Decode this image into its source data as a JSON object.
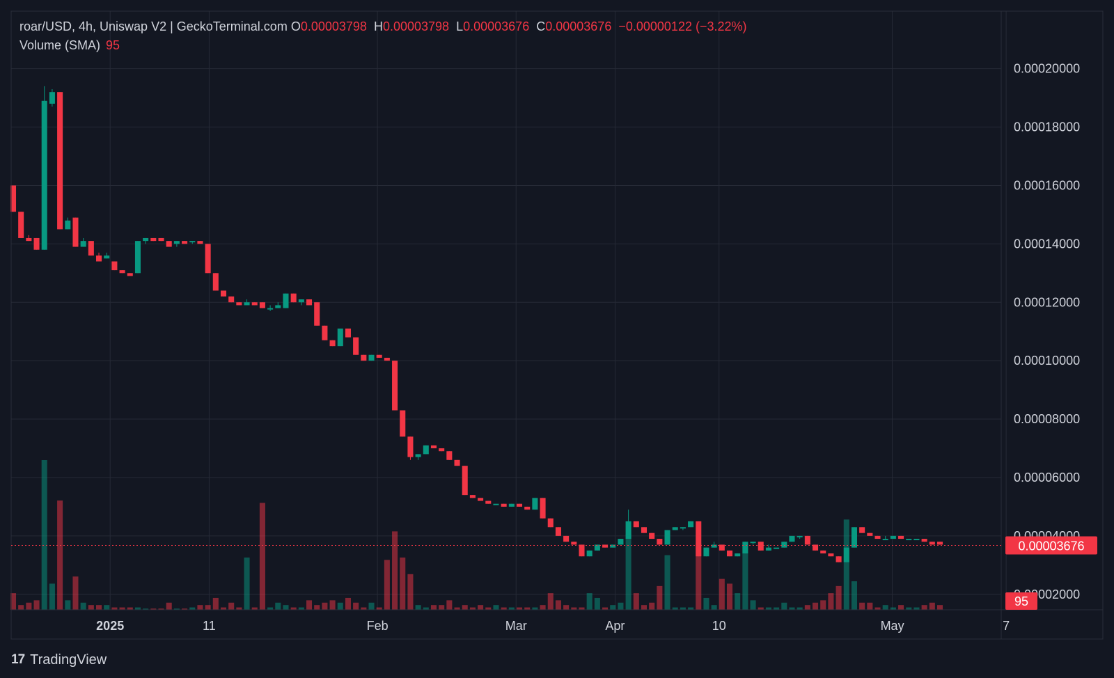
{
  "legend": {
    "symbol": "roar/USD, 4h, Uniswap V2 | GeckoTerminal.com",
    "o_label": "O",
    "o_value": "0.00003798",
    "h_label": "H",
    "h_value": "0.00003798",
    "l_label": "L",
    "l_value": "0.00003676",
    "c_label": "C",
    "c_value": "0.00003676",
    "change": "−0.00000122 (−3.22%)",
    "volume_label": "Volume (SMA)",
    "volume_value": "95"
  },
  "brand": {
    "logo_text": "17",
    "name": "TradingView"
  },
  "colors": {
    "up": "#089981",
    "down": "#f23645",
    "background": "#131722",
    "grid": "#262a36",
    "text": "#d1d4dc"
  },
  "chart_data": {
    "type": "candlestick",
    "y_ticks": [
      "0.00020000",
      "0.00018000",
      "0.00016000",
      "0.00014000",
      "0.00012000",
      "0.00010000",
      "0.00008000",
      "0.00006000",
      "0.00004000",
      "0.00002000"
    ],
    "ylim": [
      1.47e-05,
      0.0002197
    ],
    "x_ticks": [
      {
        "label": "2025",
        "pos": 10.0
      },
      {
        "label": "11",
        "pos": 20.0
      },
      {
        "label": "Feb",
        "pos": 37.0
      },
      {
        "label": "Mar",
        "pos": 51.0
      },
      {
        "label": "Apr",
        "pos": 61.0
      },
      {
        "label": "10",
        "pos": 71.5
      },
      {
        "label": "May",
        "pos": 89.0
      },
      {
        "label": "7",
        "pos": 100.5
      }
    ],
    "last_price": "0.00003676",
    "last_price_value": 3.676e-05,
    "last_volume": "95",
    "candles": [
      {
        "o": 0.00016,
        "h": 0.00016,
        "l": 0.000151,
        "c": 0.000151,
        "v": 0.7
      },
      {
        "o": 0.000151,
        "h": 0.000151,
        "l": 0.000142,
        "c": 0.000142,
        "v": 0.2
      },
      {
        "o": 0.000142,
        "h": 0.000143,
        "l": 0.000141,
        "c": 0.000141,
        "v": 0.3
      },
      {
        "o": 0.000142,
        "h": 0.000142,
        "l": 0.000138,
        "c": 0.000138,
        "v": 0.4
      },
      {
        "o": 0.000138,
        "h": 0.000194,
        "l": 0.000138,
        "c": 0.000189,
        "v": 6.3
      },
      {
        "o": 0.000188,
        "h": 0.000193,
        "l": 0.000187,
        "c": 0.000192,
        "v": 1.1
      },
      {
        "o": 0.000192,
        "h": 0.000192,
        "l": 0.000145,
        "c": 0.000145,
        "v": 4.6
      },
      {
        "o": 0.000145,
        "h": 0.000149,
        "l": 0.000145,
        "c": 0.000148,
        "v": 0.4
      },
      {
        "o": 0.000149,
        "h": 0.000149,
        "l": 0.000139,
        "c": 0.000139,
        "v": 1.4
      },
      {
        "o": 0.000139,
        "h": 0.000142,
        "l": 0.000139,
        "c": 0.000141,
        "v": 0.3
      },
      {
        "o": 0.000141,
        "h": 0.000141,
        "l": 0.000136,
        "c": 0.000136,
        "v": 0.2
      },
      {
        "o": 0.000136,
        "h": 0.000137,
        "l": 0.000134,
        "c": 0.000134,
        "v": 0.2
      },
      {
        "o": 0.000135,
        "h": 0.000137,
        "l": 0.000135,
        "c": 0.000136,
        "v": 0.2
      },
      {
        "o": 0.000134,
        "h": 0.000134,
        "l": 0.000131,
        "c": 0.000131,
        "v": 0.1
      },
      {
        "o": 0.000131,
        "h": 0.000131,
        "l": 0.00013,
        "c": 0.00013,
        "v": 0.1
      },
      {
        "o": 0.00013,
        "h": 0.00013,
        "l": 0.000129,
        "c": 0.000129,
        "v": 0.1
      },
      {
        "o": 0.00013,
        "h": 0.000141,
        "l": 0.00013,
        "c": 0.000141,
        "v": 0.1
      },
      {
        "o": 0.000141,
        "h": 0.000142,
        "l": 0.00014,
        "c": 0.000142,
        "v": 0.05
      },
      {
        "o": 0.000142,
        "h": 0.000142,
        "l": 0.000141,
        "c": 0.000141,
        "v": 0.05
      },
      {
        "o": 0.000142,
        "h": 0.000142,
        "l": 0.000141,
        "c": 0.000141,
        "v": 0.05
      },
      {
        "o": 0.000141,
        "h": 0.000141,
        "l": 0.000139,
        "c": 0.000139,
        "v": 0.3
      },
      {
        "o": 0.00014,
        "h": 0.000141,
        "l": 0.000139,
        "c": 0.000141,
        "v": 0.05
      },
      {
        "o": 0.000141,
        "h": 0.000141,
        "l": 0.00014,
        "c": 0.00014,
        "v": 0.05
      },
      {
        "o": 0.000141,
        "h": 0.000141,
        "l": 0.00014,
        "c": 0.000141,
        "v": 0.1
      },
      {
        "o": 0.000141,
        "h": 0.000141,
        "l": 0.00014,
        "c": 0.00014,
        "v": 0.2
      },
      {
        "o": 0.00014,
        "h": 0.00014,
        "l": 0.00013,
        "c": 0.00013,
        "v": 0.2
      },
      {
        "o": 0.00013,
        "h": 0.00013,
        "l": 0.000124,
        "c": 0.000124,
        "v": 0.5
      },
      {
        "o": 0.000124,
        "h": 0.000124,
        "l": 0.000122,
        "c": 0.000122,
        "v": 0.1
      },
      {
        "o": 0.000122,
        "h": 0.000122,
        "l": 0.00012,
        "c": 0.00012,
        "v": 0.3
      },
      {
        "o": 0.00012,
        "h": 0.00012,
        "l": 0.000119,
        "c": 0.000119,
        "v": 0.1
      },
      {
        "o": 0.000119,
        "h": 0.000121,
        "l": 0.000119,
        "c": 0.00012,
        "v": 2.2
      },
      {
        "o": 0.00012,
        "h": 0.00012,
        "l": 0.000119,
        "c": 0.000119,
        "v": 0.1
      },
      {
        "o": 0.00012,
        "h": 0.00012,
        "l": 0.000118,
        "c": 0.000118,
        "v": 4.5
      },
      {
        "o": 0.000118,
        "h": 0.000119,
        "l": 0.000117,
        "c": 0.000118,
        "v": 0.1
      },
      {
        "o": 0.000118,
        "h": 0.00012,
        "l": 0.000118,
        "c": 0.000119,
        "v": 0.3
      },
      {
        "o": 0.000118,
        "h": 0.000123,
        "l": 0.000118,
        "c": 0.000123,
        "v": 0.2
      },
      {
        "o": 0.000123,
        "h": 0.000123,
        "l": 0.00012,
        "c": 0.00012,
        "v": 0.1
      },
      {
        "o": 0.00012,
        "h": 0.000121,
        "l": 0.000119,
        "c": 0.000121,
        "v": 0.1
      },
      {
        "o": 0.000121,
        "h": 0.000121,
        "l": 0.000119,
        "c": 0.000119,
        "v": 0.4
      },
      {
        "o": 0.00012,
        "h": 0.00012,
        "l": 0.000112,
        "c": 0.000112,
        "v": 0.2
      },
      {
        "o": 0.000112,
        "h": 0.000112,
        "l": 0.000107,
        "c": 0.000107,
        "v": 0.3
      },
      {
        "o": 0.000107,
        "h": 0.000107,
        "l": 0.000105,
        "c": 0.000105,
        "v": 0.4
      },
      {
        "o": 0.000105,
        "h": 0.000111,
        "l": 0.000105,
        "c": 0.000111,
        "v": 0.3
      },
      {
        "o": 0.000111,
        "h": 0.000111,
        "l": 0.000108,
        "c": 0.000108,
        "v": 0.5
      },
      {
        "o": 0.000108,
        "h": 0.000108,
        "l": 0.000102,
        "c": 0.000102,
        "v": 0.3
      },
      {
        "o": 0.000102,
        "h": 0.000102,
        "l": 0.0001,
        "c": 0.0001,
        "v": 0.1
      },
      {
        "o": 0.0001,
        "h": 0.000102,
        "l": 0.0001,
        "c": 0.000102,
        "v": 0.3
      },
      {
        "o": 0.000102,
        "h": 0.000102,
        "l": 0.000101,
        "c": 0.000101,
        "v": 0.1
      },
      {
        "o": 0.000101,
        "h": 0.000101,
        "l": 0.0001,
        "c": 0.0001,
        "v": 2.1
      },
      {
        "o": 0.0001,
        "h": 0.0001,
        "l": 8.3e-05,
        "c": 8.3e-05,
        "v": 3.3
      },
      {
        "o": 8.3e-05,
        "h": 8.3e-05,
        "l": 7.4e-05,
        "c": 7.4e-05,
        "v": 2.2
      },
      {
        "o": 7.4e-05,
        "h": 7.4e-05,
        "l": 6.6e-05,
        "c": 6.7e-05,
        "v": 1.5
      },
      {
        "o": 6.7e-05,
        "h": 6.8e-05,
        "l": 6.6e-05,
        "c": 6.8e-05,
        "v": 0.2
      },
      {
        "o": 6.8e-05,
        "h": 7.1e-05,
        "l": 6.8e-05,
        "c": 7.1e-05,
        "v": 0.1
      },
      {
        "o": 7.1e-05,
        "h": 7.1e-05,
        "l": 7e-05,
        "c": 7e-05,
        "v": 0.2
      },
      {
        "o": 7e-05,
        "h": 7e-05,
        "l": 6.9e-05,
        "c": 6.9e-05,
        "v": 0.2
      },
      {
        "o": 6.9e-05,
        "h": 6.9e-05,
        "l": 6.6e-05,
        "c": 6.6e-05,
        "v": 0.4
      },
      {
        "o": 6.6e-05,
        "h": 6.6e-05,
        "l": 6.4e-05,
        "c": 6.4e-05,
        "v": 0.1
      },
      {
        "o": 6.4e-05,
        "h": 6.4e-05,
        "l": 5.4e-05,
        "c": 5.4e-05,
        "v": 0.2
      },
      {
        "o": 5.4e-05,
        "h": 5.4e-05,
        "l": 5.3e-05,
        "c": 5.3e-05,
        "v": 0.1
      },
      {
        "o": 5.3e-05,
        "h": 5.3e-05,
        "l": 5.2e-05,
        "c": 5.2e-05,
        "v": 0.2
      },
      {
        "o": 5.2e-05,
        "h": 5.2e-05,
        "l": 5.1e-05,
        "c": 5.1e-05,
        "v": 0.1
      },
      {
        "o": 5.1e-05,
        "h": 5.1e-05,
        "l": 5.1e-05,
        "c": 5.1e-05,
        "v": 0.2
      },
      {
        "o": 5.1e-05,
        "h": 5.1e-05,
        "l": 5e-05,
        "c": 5e-05,
        "v": 0.1
      },
      {
        "o": 5e-05,
        "h": 5.1e-05,
        "l": 5e-05,
        "c": 5.1e-05,
        "v": 0.1
      },
      {
        "o": 5.1e-05,
        "h": 5.1e-05,
        "l": 5e-05,
        "c": 5e-05,
        "v": 0.1
      },
      {
        "o": 5e-05,
        "h": 5e-05,
        "l": 4.9e-05,
        "c": 4.9e-05,
        "v": 0.1
      },
      {
        "o": 4.9e-05,
        "h": 5.3e-05,
        "l": 4.9e-05,
        "c": 5.3e-05,
        "v": 0.1
      },
      {
        "o": 5.3e-05,
        "h": 5.3e-05,
        "l": 4.6e-05,
        "c": 4.6e-05,
        "v": 0.2
      },
      {
        "o": 4.6e-05,
        "h": 4.6e-05,
        "l": 4.3e-05,
        "c": 4.3e-05,
        "v": 0.7
      },
      {
        "o": 4.3e-05,
        "h": 4.3e-05,
        "l": 4e-05,
        "c": 4e-05,
        "v": 0.4
      },
      {
        "o": 4e-05,
        "h": 4e-05,
        "l": 3.8e-05,
        "c": 3.8e-05,
        "v": 0.2
      },
      {
        "o": 3.8e-05,
        "h": 3.8e-05,
        "l": 3.7e-05,
        "c": 3.7e-05,
        "v": 0.1
      },
      {
        "o": 3.7e-05,
        "h": 3.7e-05,
        "l": 3.3e-05,
        "c": 3.3e-05,
        "v": 0.1
      },
      {
        "o": 3.3e-05,
        "h": 3.5e-05,
        "l": 3.3e-05,
        "c": 3.5e-05,
        "v": 0.7
      },
      {
        "o": 3.5e-05,
        "h": 3.7e-05,
        "l": 3.5e-05,
        "c": 3.7e-05,
        "v": 0.5
      },
      {
        "o": 3.7e-05,
        "h": 3.7e-05,
        "l": 3.6e-05,
        "c": 3.6e-05,
        "v": 0.1
      },
      {
        "o": 3.6e-05,
        "h": 3.7e-05,
        "l": 3.6e-05,
        "c": 3.7e-05,
        "v": 0.2
      },
      {
        "o": 3.7e-05,
        "h": 3.9e-05,
        "l": 3.7e-05,
        "c": 3.9e-05,
        "v": 0.3
      },
      {
        "o": 3.9e-05,
        "h": 4.9e-05,
        "l": 3.9e-05,
        "c": 4.5e-05,
        "v": 3.2
      },
      {
        "o": 4.5e-05,
        "h": 4.5e-05,
        "l": 4.3e-05,
        "c": 4.3e-05,
        "v": 0.7
      },
      {
        "o": 4.3e-05,
        "h": 4.3e-05,
        "l": 4.1e-05,
        "c": 4.1e-05,
        "v": 0.2
      },
      {
        "o": 4.1e-05,
        "h": 4.1e-05,
        "l": 3.9e-05,
        "c": 3.9e-05,
        "v": 0.3
      },
      {
        "o": 3.9e-05,
        "h": 3.9e-05,
        "l": 3.7e-05,
        "c": 3.7e-05,
        "v": 1.0
      },
      {
        "o": 3.7e-05,
        "h": 4.2e-05,
        "l": 3.7e-05,
        "c": 4.2e-05,
        "v": 2.3
      },
      {
        "o": 4.2e-05,
        "h": 4.3e-05,
        "l": 4.2e-05,
        "c": 4.3e-05,
        "v": 0.1
      },
      {
        "o": 4.3e-05,
        "h": 4.3e-05,
        "l": 4.2e-05,
        "c": 4.3e-05,
        "v": 0.1
      },
      {
        "o": 4.3e-05,
        "h": 4.5e-05,
        "l": 4.3e-05,
        "c": 4.5e-05,
        "v": 0.1
      },
      {
        "o": 4.5e-05,
        "h": 4.5e-05,
        "l": 3.3e-05,
        "c": 3.3e-05,
        "v": 2.8
      },
      {
        "o": 3.3e-05,
        "h": 3.6e-05,
        "l": 3.3e-05,
        "c": 3.6e-05,
        "v": 0.5
      },
      {
        "o": 3.6e-05,
        "h": 3.8e-05,
        "l": 3.6e-05,
        "c": 3.7e-05,
        "v": 0.2
      },
      {
        "o": 3.7e-05,
        "h": 3.7e-05,
        "l": 3.5e-05,
        "c": 3.5e-05,
        "v": 1.3
      },
      {
        "o": 3.5e-05,
        "h": 3.5e-05,
        "l": 3.3e-05,
        "c": 3.3e-05,
        "v": 1.1
      },
      {
        "o": 3.3e-05,
        "h": 3.4e-05,
        "l": 3.3e-05,
        "c": 3.4e-05,
        "v": 0.7
      },
      {
        "o": 3.4e-05,
        "h": 3.8e-05,
        "l": 3.4e-05,
        "c": 3.8e-05,
        "v": 2.4
      },
      {
        "o": 3.8e-05,
        "h": 3.8e-05,
        "l": 3.7e-05,
        "c": 3.8e-05,
        "v": 0.4
      },
      {
        "o": 3.8e-05,
        "h": 3.8e-05,
        "l": 3.5e-05,
        "c": 3.5e-05,
        "v": 0.1
      },
      {
        "o": 3.5e-05,
        "h": 3.7e-05,
        "l": 3.5e-05,
        "c": 3.6e-05,
        "v": 0.1
      },
      {
        "o": 3.6e-05,
        "h": 3.6e-05,
        "l": 3.6e-05,
        "c": 3.6e-05,
        "v": 0.1
      },
      {
        "o": 3.6e-05,
        "h": 3.8e-05,
        "l": 3.6e-05,
        "c": 3.8e-05,
        "v": 0.3
      },
      {
        "o": 3.8e-05,
        "h": 4e-05,
        "l": 3.8e-05,
        "c": 4e-05,
        "v": 0.1
      },
      {
        "o": 4e-05,
        "h": 4e-05,
        "l": 3.9e-05,
        "c": 4e-05,
        "v": 0.1
      },
      {
        "o": 4e-05,
        "h": 4e-05,
        "l": 3.7e-05,
        "c": 3.7e-05,
        "v": 0.2
      },
      {
        "o": 3.7e-05,
        "h": 3.7e-05,
        "l": 3.5e-05,
        "c": 3.5e-05,
        "v": 0.3
      },
      {
        "o": 3.5e-05,
        "h": 3.5e-05,
        "l": 3.4e-05,
        "c": 3.4e-05,
        "v": 0.4
      },
      {
        "o": 3.4e-05,
        "h": 3.4e-05,
        "l": 3.3e-05,
        "c": 3.3e-05,
        "v": 0.7
      },
      {
        "o": 3.3e-05,
        "h": 3.3e-05,
        "l": 3.1e-05,
        "c": 3.1e-05,
        "v": 1.0
      },
      {
        "o": 3.1e-05,
        "h": 3.6e-05,
        "l": 3.1e-05,
        "c": 3.6e-05,
        "v": 3.8
      },
      {
        "o": 3.6e-05,
        "h": 4.3e-05,
        "l": 3.6e-05,
        "c": 4.3e-05,
        "v": 1.2
      },
      {
        "o": 4.3e-05,
        "h": 4.3e-05,
        "l": 4.1e-05,
        "c": 4.1e-05,
        "v": 0.3
      },
      {
        "o": 4.1e-05,
        "h": 4.1e-05,
        "l": 4e-05,
        "c": 4e-05,
        "v": 0.3
      },
      {
        "o": 4e-05,
        "h": 4e-05,
        "l": 3.9e-05,
        "c": 3.9e-05,
        "v": 0.1
      },
      {
        "o": 3.9e-05,
        "h": 4e-05,
        "l": 3.9e-05,
        "c": 3.9e-05,
        "v": 0.2
      },
      {
        "o": 3.9e-05,
        "h": 4e-05,
        "l": 3.9e-05,
        "c": 4e-05,
        "v": 0.1
      },
      {
        "o": 4e-05,
        "h": 4e-05,
        "l": 3.9e-05,
        "c": 3.9e-05,
        "v": 0.2
      },
      {
        "o": 3.9e-05,
        "h": 3.9e-05,
        "l": 3.9e-05,
        "c": 3.9e-05,
        "v": 0.1
      },
      {
        "o": 3.9e-05,
        "h": 3.9e-05,
        "l": 3.9e-05,
        "c": 3.9e-05,
        "v": 0.1
      },
      {
        "o": 3.9e-05,
        "h": 3.9e-05,
        "l": 3.8e-05,
        "c": 3.8e-05,
        "v": 0.2
      },
      {
        "o": 3.8e-05,
        "h": 3.8e-05,
        "l": 3.7e-05,
        "c": 3.7e-05,
        "v": 0.3
      },
      {
        "o": 3.8e-05,
        "h": 3.8e-05,
        "l": 3.7e-05,
        "c": 3.7e-05,
        "v": 0.2
      }
    ]
  }
}
